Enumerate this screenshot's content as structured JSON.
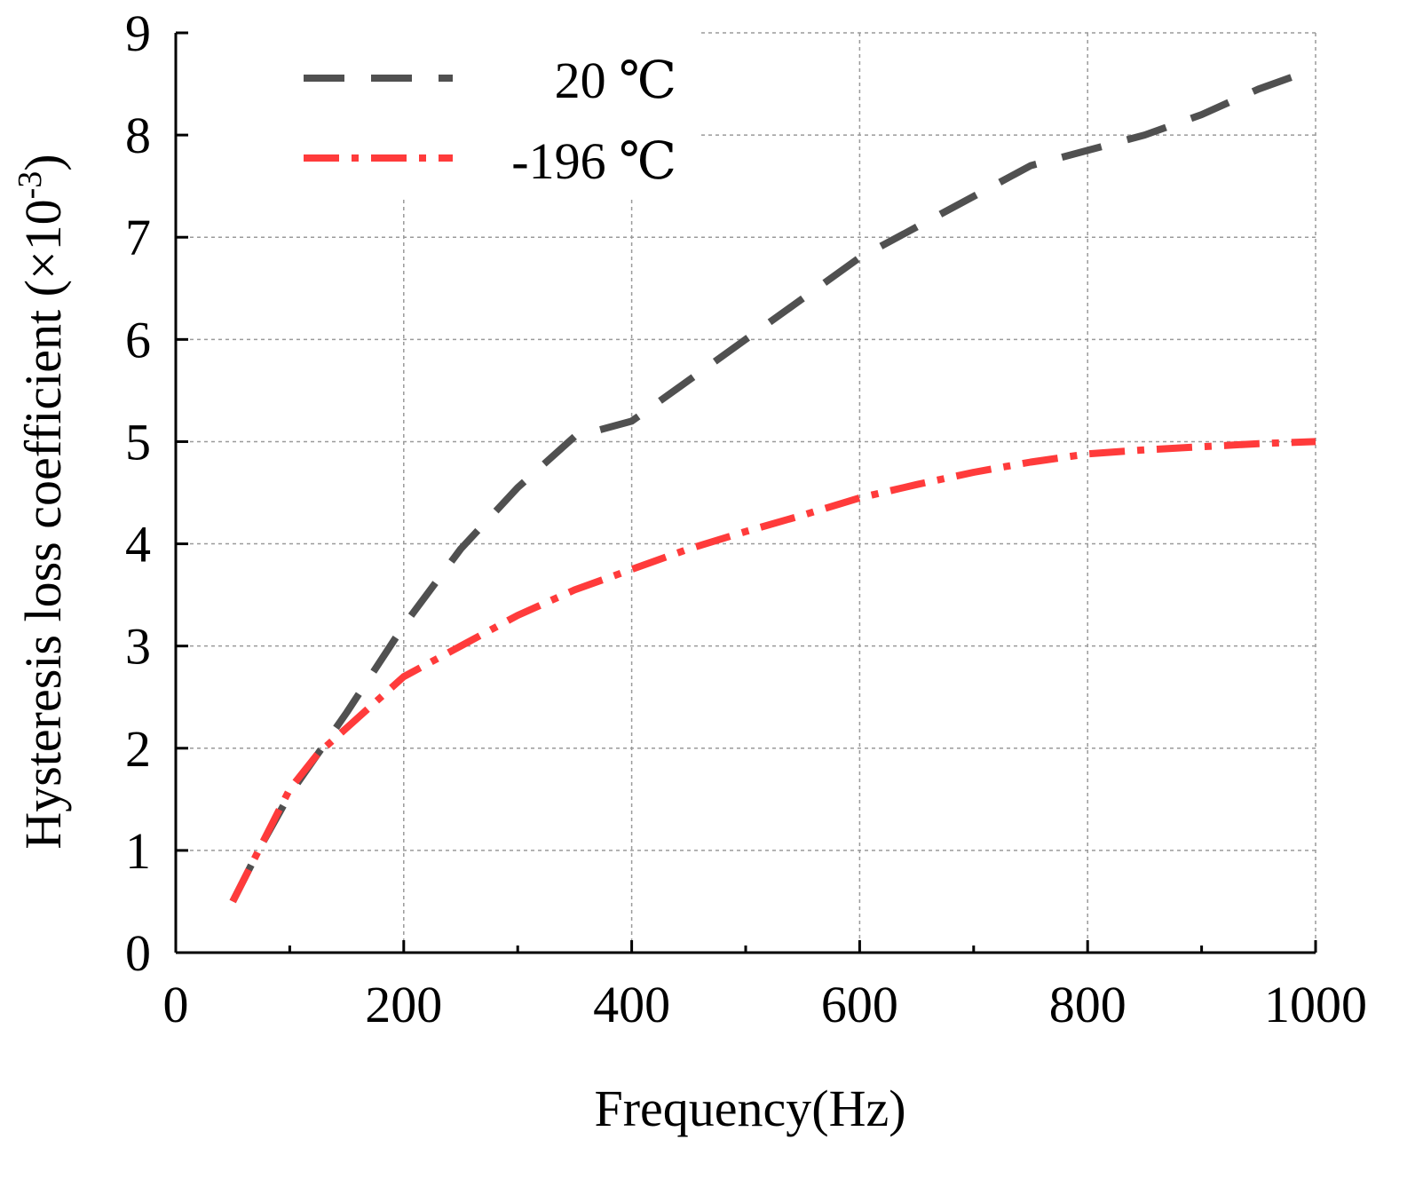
{
  "chart_data": {
    "type": "line",
    "title": "",
    "xlabel": "Frequency(Hz)",
    "ylabel_main": "Hysteresis loss coefficient (×10",
    "ylabel_sup": "-3",
    "ylabel_close": ")",
    "xlim": [
      0,
      1000
    ],
    "ylim": [
      0,
      9
    ],
    "xticks": [
      0,
      200,
      400,
      600,
      800,
      1000
    ],
    "xticks_minor": [
      100,
      300,
      500,
      700,
      900
    ],
    "yticks": [
      0,
      1,
      2,
      3,
      4,
      5,
      6,
      7,
      8,
      9
    ],
    "grid": true,
    "legend_position": "top-left",
    "series": [
      {
        "name": "20 ℃",
        "color": "#505050",
        "style": "dashed",
        "x": [
          50,
          75,
          100,
          125,
          150,
          200,
          250,
          300,
          350,
          400,
          450,
          500,
          550,
          600,
          650,
          700,
          750,
          800,
          850,
          900,
          950,
          1000
        ],
        "y": [
          0.5,
          1.05,
          1.55,
          1.95,
          2.35,
          3.2,
          3.95,
          4.55,
          5.05,
          5.2,
          5.6,
          6.0,
          6.4,
          6.8,
          7.1,
          7.4,
          7.7,
          7.85,
          8.0,
          8.2,
          8.45,
          8.65
        ]
      },
      {
        "name": "-196 ℃",
        "color": "#ff3b3b",
        "style": "dashdot",
        "x": [
          50,
          75,
          100,
          125,
          150,
          175,
          200,
          250,
          300,
          350,
          400,
          450,
          500,
          550,
          600,
          650,
          700,
          750,
          800,
          850,
          900,
          950,
          1000
        ],
        "y": [
          0.5,
          1.05,
          1.6,
          1.95,
          2.2,
          2.45,
          2.7,
          3.0,
          3.3,
          3.55,
          3.75,
          3.95,
          4.12,
          4.28,
          4.45,
          4.58,
          4.7,
          4.8,
          4.88,
          4.92,
          4.95,
          4.98,
          5.0
        ]
      }
    ]
  }
}
